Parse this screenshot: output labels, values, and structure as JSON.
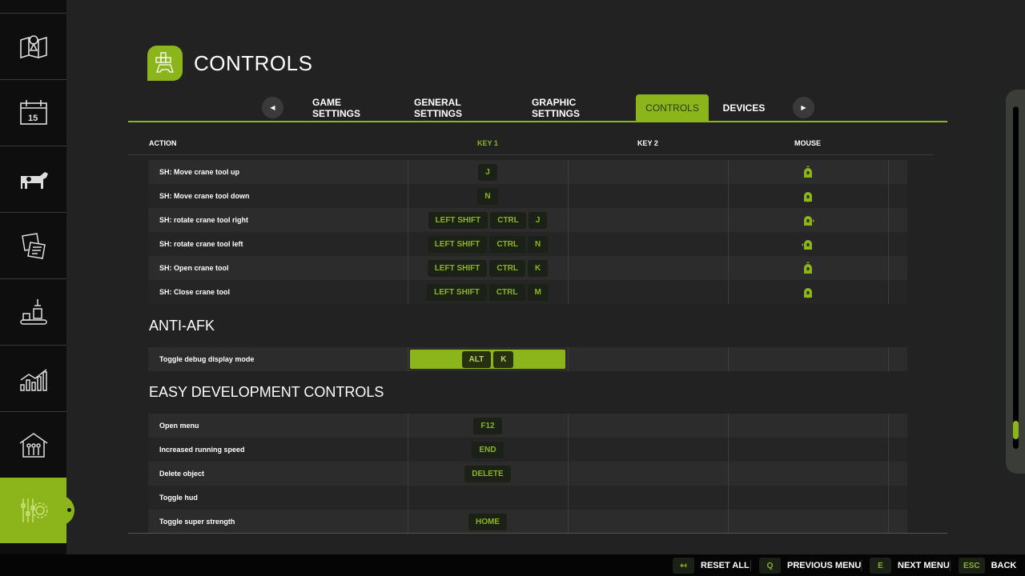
{
  "header": {
    "title": "CONTROLS",
    "icon": "gamepad-keys-icon"
  },
  "sidebar": {
    "items": [
      {
        "icon": "map-icon"
      },
      {
        "icon": "calendar-icon",
        "label": "15"
      },
      {
        "icon": "cow-icon"
      },
      {
        "icon": "contracts-icon"
      },
      {
        "icon": "production-icon"
      },
      {
        "icon": "statistics-icon"
      },
      {
        "icon": "workers-barn-icon"
      },
      {
        "icon": "settings-icon",
        "active": true
      }
    ]
  },
  "tabs": [
    {
      "label": "GAME SETTINGS"
    },
    {
      "label": "GENERAL SETTINGS"
    },
    {
      "label": "GRAPHIC SETTINGS"
    },
    {
      "label": "CONTROLS",
      "active": true
    },
    {
      "label": "DEVICES"
    }
  ],
  "columns": {
    "action": "ACTION",
    "key1": "KEY 1",
    "key2": "KEY 2",
    "mouse": "MOUSE"
  },
  "groups": [
    {
      "title": "",
      "rows": [
        {
          "action": "SH: Move crane tool up",
          "key1": [
            "J"
          ],
          "mouse": "mouse-up"
        },
        {
          "action": "SH: Move crane tool down",
          "key1": [
            "N"
          ],
          "mouse": "mouse-down"
        },
        {
          "action": "SH: rotate crane tool right",
          "key1": [
            "LEFT SHIFT",
            "CTRL",
            "J"
          ],
          "mouse": "mouse-right"
        },
        {
          "action": "SH: rotate crane tool left",
          "key1": [
            "LEFT SHIFT",
            "CTRL",
            "N"
          ],
          "mouse": "mouse-left"
        },
        {
          "action": "SH: Open crane tool",
          "key1": [
            "LEFT SHIFT",
            "CTRL",
            "K"
          ],
          "mouse": "mouse-up"
        },
        {
          "action": "SH: Close crane tool",
          "key1": [
            "LEFT SHIFT",
            "CTRL",
            "M"
          ],
          "mouse": "mouse-down"
        }
      ]
    },
    {
      "title": "ANTI-AFK",
      "rows": [
        {
          "action": "Toggle debug display mode",
          "key1": [
            "ALT",
            "K"
          ],
          "selected": true
        }
      ]
    },
    {
      "title": "EASY DEVELOPMENT CONTROLS",
      "rows": [
        {
          "action": "Open menu",
          "key1": [
            "F12"
          ]
        },
        {
          "action": "Increased running speed",
          "key1": [
            "END"
          ]
        },
        {
          "action": "Delete object",
          "key1": [
            "DELETE"
          ]
        },
        {
          "action": "Toggle hud",
          "key1": []
        },
        {
          "action": "Toggle super strength",
          "key1": [
            "HOME"
          ]
        }
      ]
    }
  ],
  "scrollbar": {
    "position": 0.97
  },
  "footer": [
    {
      "key": "↤",
      "label": "RESET ALL"
    },
    {
      "key": "Q",
      "label": "PREVIOUS MENU"
    },
    {
      "key": "E",
      "label": "NEXT MENU"
    },
    {
      "key": "ESC",
      "label": "BACK"
    }
  ],
  "colors": {
    "accent": "#8cb51b",
    "background": "#222222",
    "sidebar": "#0e0e0e"
  }
}
